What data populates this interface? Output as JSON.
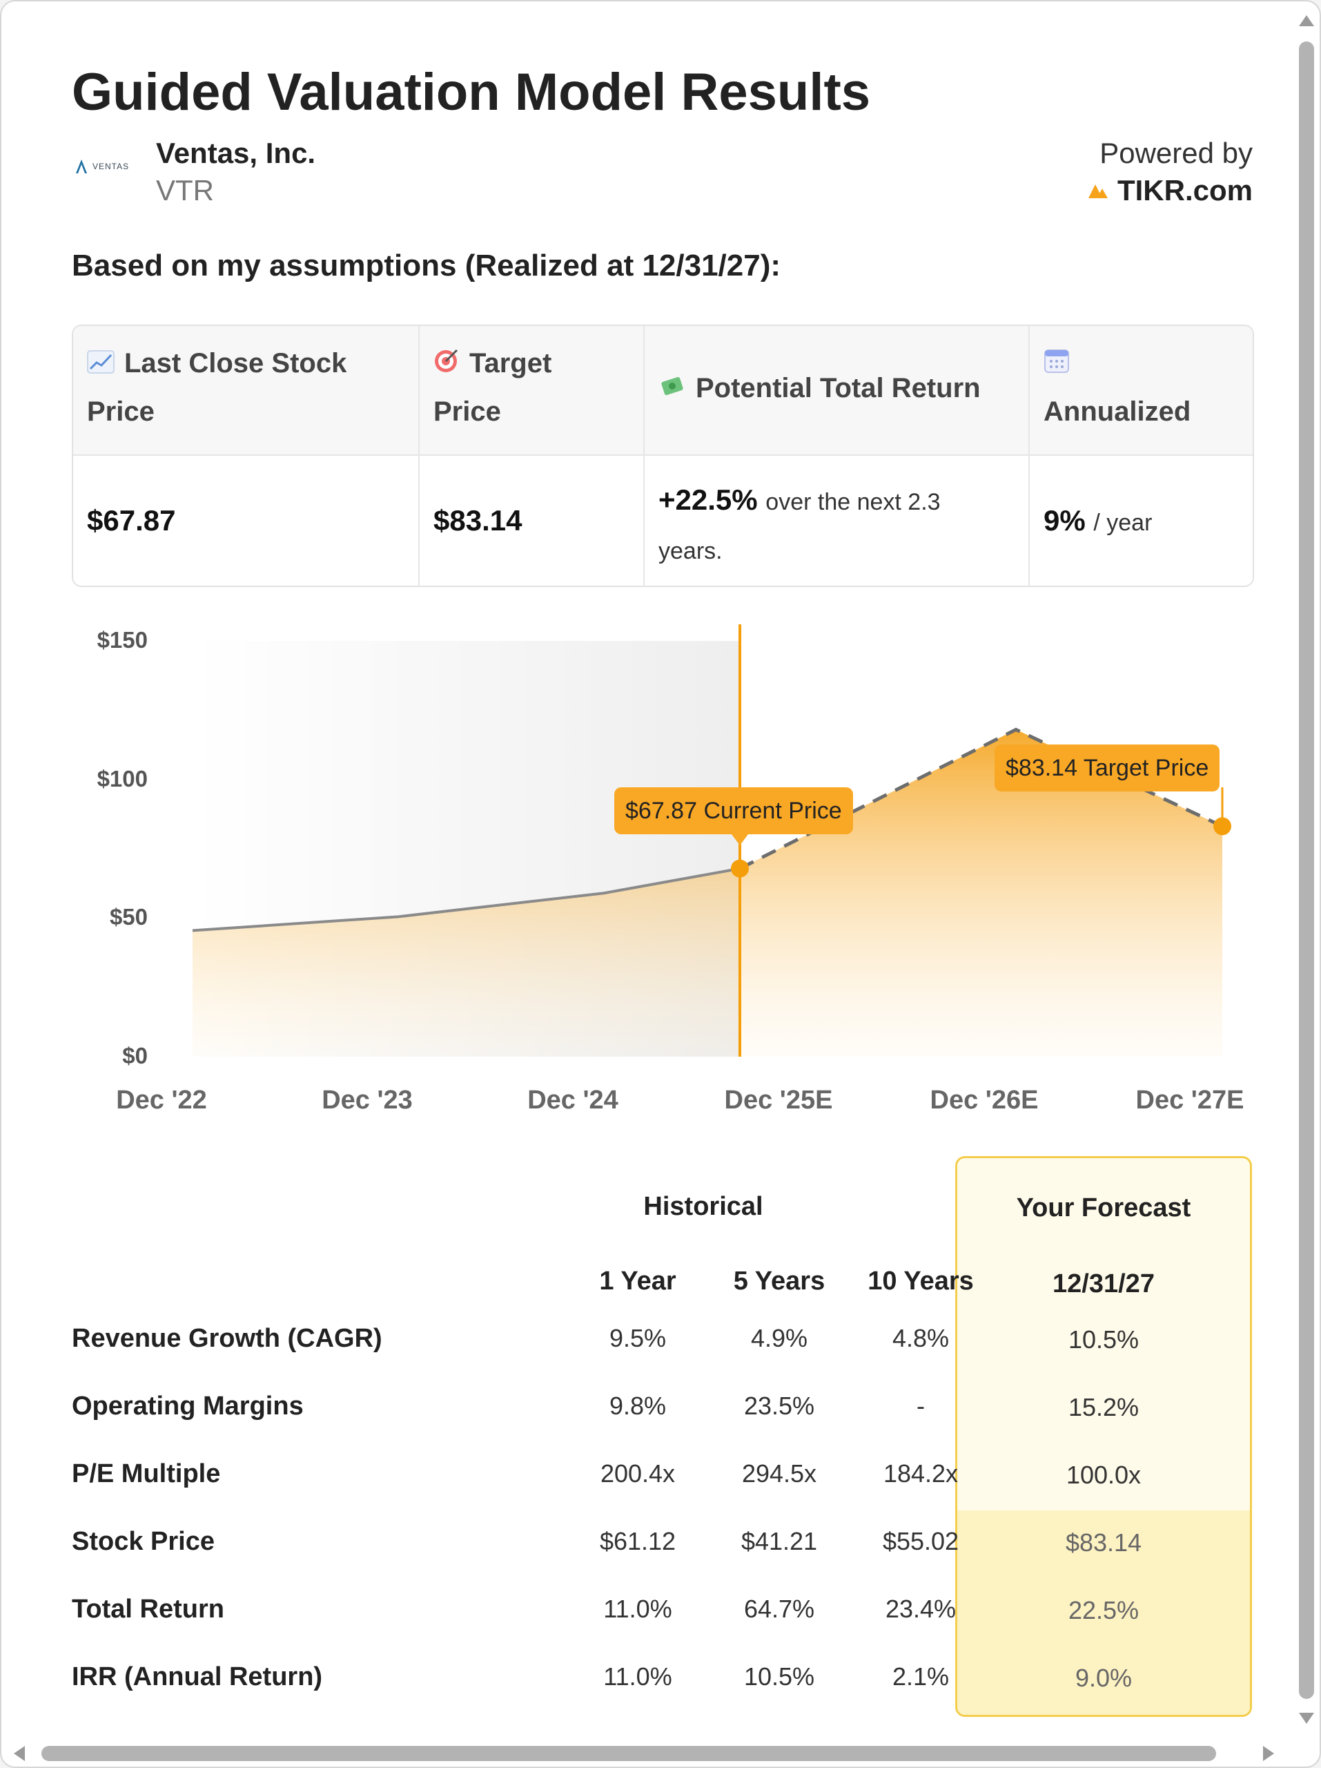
{
  "header": {
    "title": "Guided Valuation Model Results",
    "company_name": "Ventas, Inc.",
    "ticker": "VTR",
    "company_logo_text": "VENTAS",
    "powered_label": "Powered by",
    "powered_brand": "TIKR.com"
  },
  "subtitle": "Based on my assumptions (Realized at 12/31/27):",
  "summary": {
    "columns": [
      {
        "icon": "chart-increasing-icon",
        "label_1": "Last Close Stock",
        "label_2": "Price",
        "value": "$67.87"
      },
      {
        "icon": "target-icon",
        "label_1": "Target",
        "label_2": "Price",
        "value": "$83.14"
      },
      {
        "icon": "money-with-wings-icon",
        "label_1": "Potential Total Return",
        "value_strong": "+22.5%",
        "value_rest_1": "over the next 2.3",
        "value_rest_2": "years."
      },
      {
        "icon": "calendar-icon",
        "label_2": "Annualized",
        "value_strong": "9%",
        "value_rest_1": "/ year"
      }
    ]
  },
  "chart_data": {
    "type": "area",
    "x": [
      "Dec '22",
      "Dec '23",
      "Dec '24",
      "Dec '25E",
      "Dec '26E",
      "Dec '27E"
    ],
    "y_ticks": [
      "$150",
      "$100",
      "$50",
      "$0"
    ],
    "ylim": [
      0,
      150
    ],
    "series": [
      {
        "values": [
          45.5,
          50.5,
          59,
          67.87,
          118,
          83.14
        ]
      }
    ],
    "annotations": [
      {
        "label": "$67.87 Current Price",
        "x": "Dec '25E",
        "y": 67.87
      },
      {
        "label": "$83.14 Target Price",
        "x": "Dec '27E",
        "y": 83.14
      }
    ],
    "colors": {
      "area": "#f9a825",
      "line_historical": "#8a8a8a",
      "line_forecast": "#6d6d6d",
      "marker": "#f59e0b"
    }
  },
  "metrics": {
    "historical_title": "Historical",
    "forecast_title": "Your Forecast",
    "col_headers": [
      "1 Year",
      "5 Years",
      "10 Years"
    ],
    "forecast_date": "12/31/27",
    "rows": [
      {
        "label": "Revenue Growth (CAGR)",
        "values": [
          "9.5%",
          "4.9%",
          "4.8%"
        ],
        "forecast": "10.5%"
      },
      {
        "label": "Operating Margins",
        "values": [
          "9.8%",
          "23.5%",
          "-"
        ],
        "forecast": "15.2%"
      },
      {
        "label": "P/E Multiple",
        "values": [
          "200.4x",
          "294.5x",
          "184.2x"
        ],
        "forecast": "100.0x"
      },
      {
        "label": "Stock Price",
        "values": [
          "$61.12",
          "$41.21",
          "$55.02"
        ],
        "forecast": "$83.14"
      },
      {
        "label": "Total Return",
        "values": [
          "11.0%",
          "64.7%",
          "23.4%"
        ],
        "forecast": "22.5%"
      },
      {
        "label": "IRR (Annual Return)",
        "values": [
          "11.0%",
          "10.5%",
          "2.1%"
        ],
        "forecast": "9.0%"
      }
    ]
  }
}
